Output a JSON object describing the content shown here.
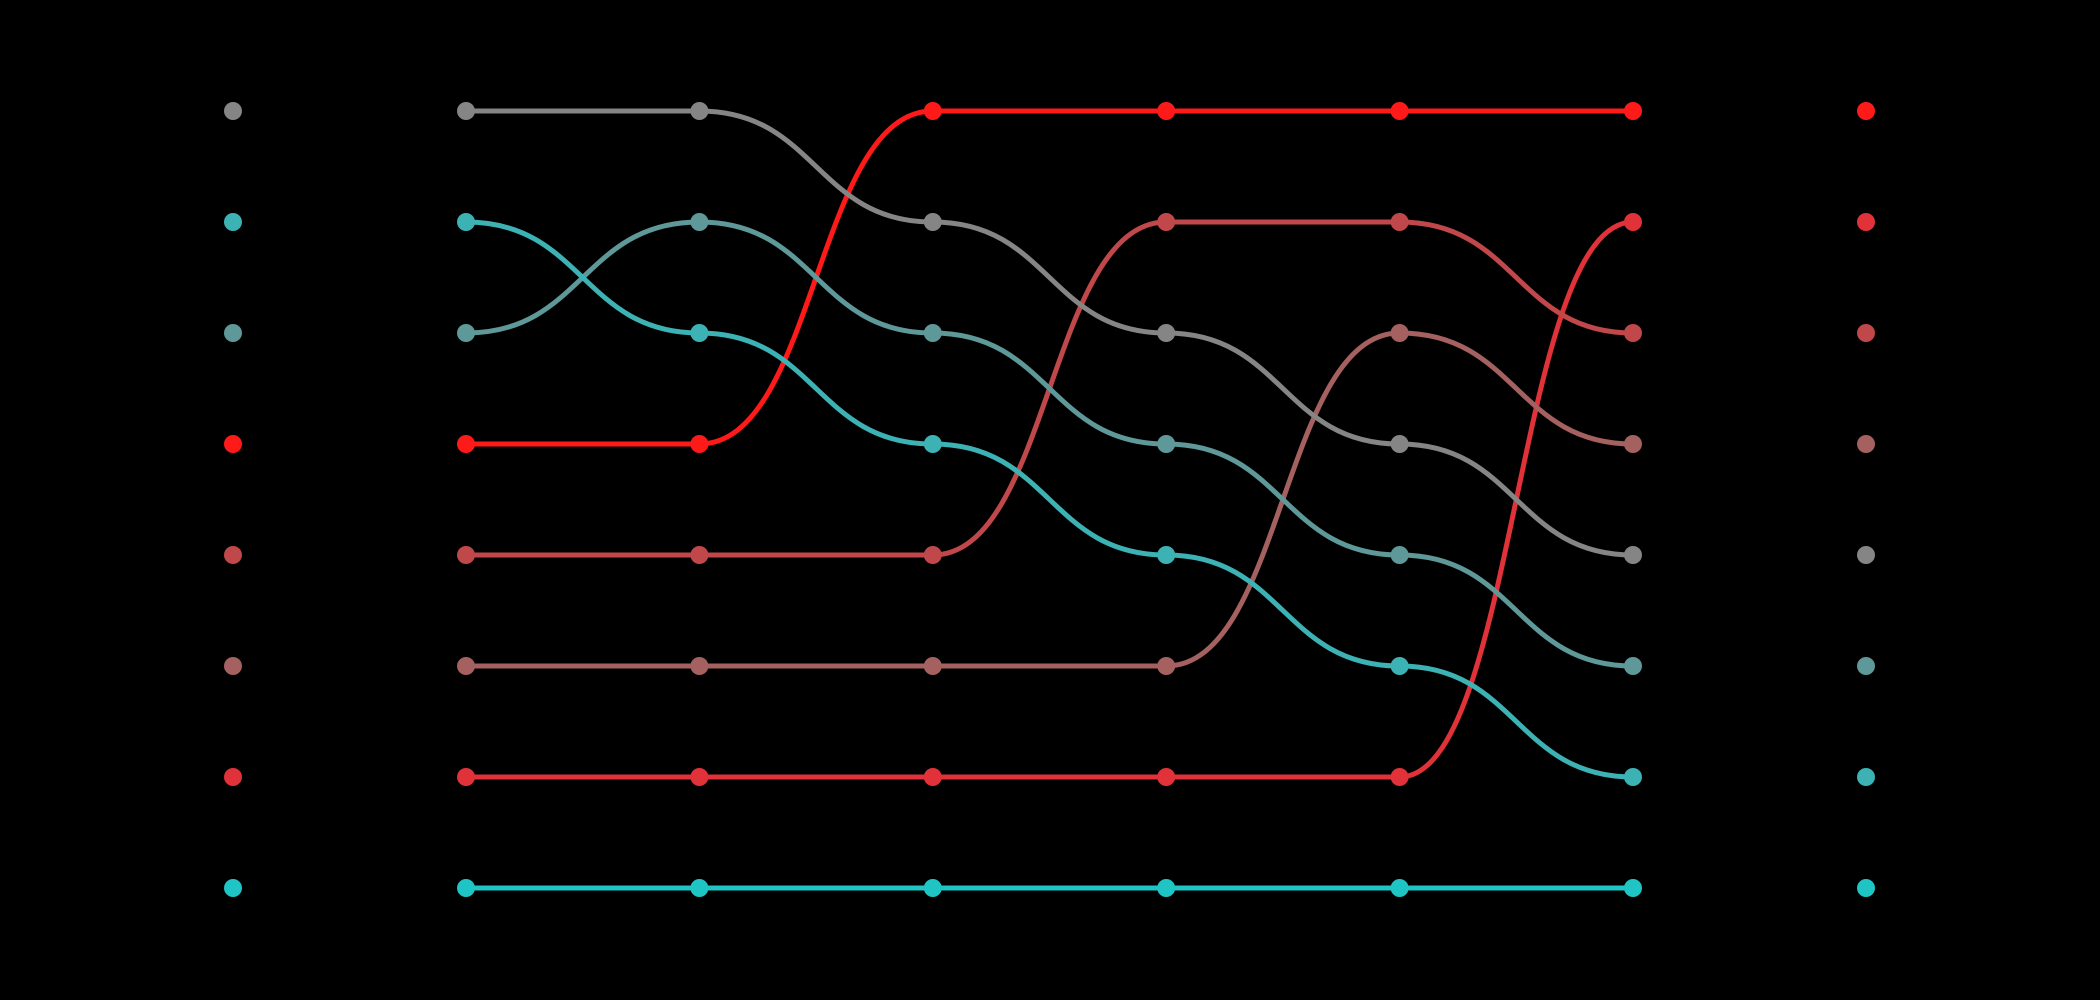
{
  "chart_data": {
    "type": "line",
    "subtype": "bump-chart",
    "title": "",
    "xlabel": "",
    "ylabel": "",
    "background": "#000000",
    "grid": false,
    "legend": "none",
    "x": [
      1,
      2,
      3,
      4,
      5,
      6
    ],
    "ylim": [
      1,
      8
    ],
    "y_inverted": true,
    "series": [
      {
        "color": "#ff1a1a",
        "ranks": [
          4,
          4,
          1,
          1,
          1,
          1
        ]
      },
      {
        "color": "#e03238",
        "ranks": [
          7,
          7,
          7,
          7,
          7,
          2
        ]
      },
      {
        "color": "#c0474a",
        "ranks": [
          5,
          5,
          5,
          2,
          2,
          3
        ]
      },
      {
        "color": "#a56060",
        "ranks": [
          6,
          6,
          6,
          6,
          3,
          4
        ]
      },
      {
        "color": "#858585",
        "ranks": [
          1,
          1,
          2,
          3,
          4,
          5
        ]
      },
      {
        "color": "#5e9898",
        "ranks": [
          3,
          2,
          3,
          4,
          5,
          6
        ]
      },
      {
        "color": "#3cb2b5",
        "ranks": [
          2,
          3,
          4,
          5,
          6,
          7
        ]
      },
      {
        "color": "#1fc4c4",
        "ranks": [
          8,
          8,
          8,
          8,
          8,
          8
        ]
      }
    ]
  }
}
